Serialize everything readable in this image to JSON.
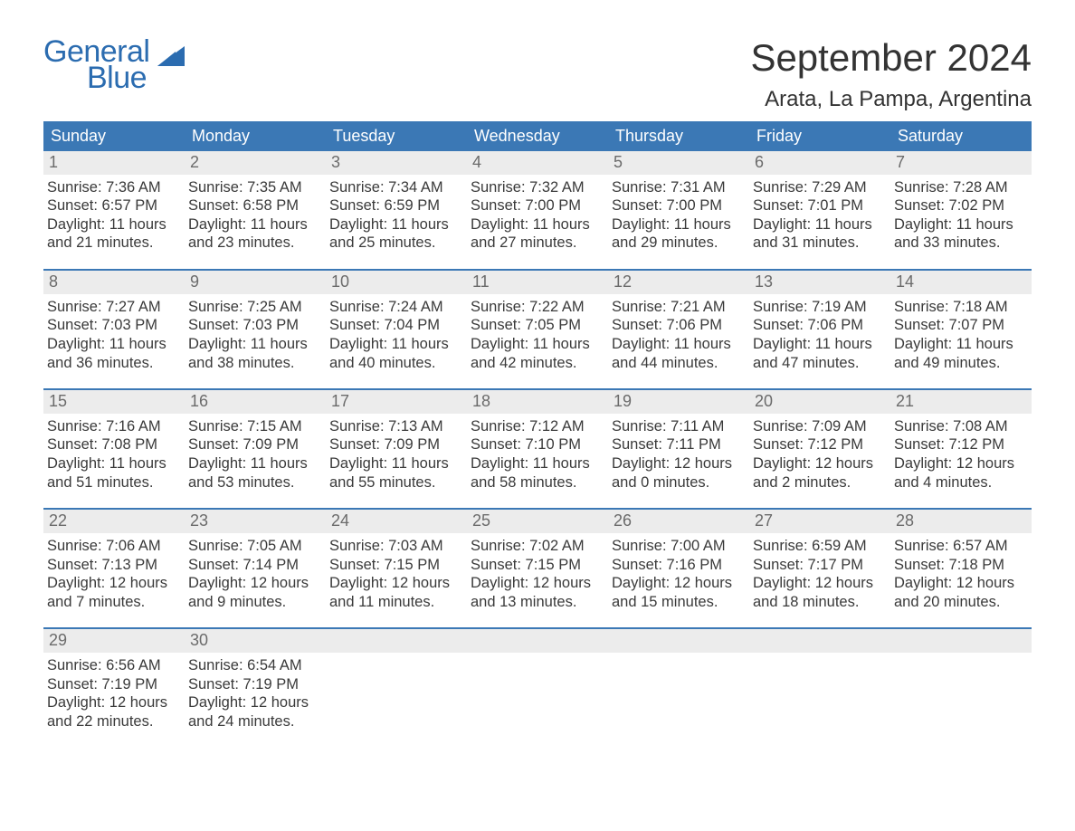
{
  "logo": {
    "text1": "General",
    "text2": "Blue",
    "brand_color": "#2b6cb0",
    "mark_color": "#2b6cb0"
  },
  "title": "September 2024",
  "location": "Arata, La Pampa, Argentina",
  "colors": {
    "header_bg": "#3b78b5",
    "header_fg": "#ffffff",
    "band_bg": "#ececec",
    "band_fg": "#6b6b6b",
    "body_fg": "#3a3a3a",
    "rule": "#3b78b5",
    "page_bg": "#ffffff"
  },
  "typography": {
    "title_fontsize": 42,
    "location_fontsize": 24,
    "dow_fontsize": 18,
    "daynum_fontsize": 18,
    "body_fontsize": 16.5,
    "logo_fontsize": 34,
    "font_family": "Arial"
  },
  "days_of_week": [
    "Sunday",
    "Monday",
    "Tuesday",
    "Wednesday",
    "Thursday",
    "Friday",
    "Saturday"
  ],
  "weeks": [
    [
      {
        "n": "1",
        "sunrise": "Sunrise: 7:36 AM",
        "sunset": "Sunset: 6:57 PM",
        "day1": "Daylight: 11 hours",
        "day2": "and 21 minutes."
      },
      {
        "n": "2",
        "sunrise": "Sunrise: 7:35 AM",
        "sunset": "Sunset: 6:58 PM",
        "day1": "Daylight: 11 hours",
        "day2": "and 23 minutes."
      },
      {
        "n": "3",
        "sunrise": "Sunrise: 7:34 AM",
        "sunset": "Sunset: 6:59 PM",
        "day1": "Daylight: 11 hours",
        "day2": "and 25 minutes."
      },
      {
        "n": "4",
        "sunrise": "Sunrise: 7:32 AM",
        "sunset": "Sunset: 7:00 PM",
        "day1": "Daylight: 11 hours",
        "day2": "and 27 minutes."
      },
      {
        "n": "5",
        "sunrise": "Sunrise: 7:31 AM",
        "sunset": "Sunset: 7:00 PM",
        "day1": "Daylight: 11 hours",
        "day2": "and 29 minutes."
      },
      {
        "n": "6",
        "sunrise": "Sunrise: 7:29 AM",
        "sunset": "Sunset: 7:01 PM",
        "day1": "Daylight: 11 hours",
        "day2": "and 31 minutes."
      },
      {
        "n": "7",
        "sunrise": "Sunrise: 7:28 AM",
        "sunset": "Sunset: 7:02 PM",
        "day1": "Daylight: 11 hours",
        "day2": "and 33 minutes."
      }
    ],
    [
      {
        "n": "8",
        "sunrise": "Sunrise: 7:27 AM",
        "sunset": "Sunset: 7:03 PM",
        "day1": "Daylight: 11 hours",
        "day2": "and 36 minutes."
      },
      {
        "n": "9",
        "sunrise": "Sunrise: 7:25 AM",
        "sunset": "Sunset: 7:03 PM",
        "day1": "Daylight: 11 hours",
        "day2": "and 38 minutes."
      },
      {
        "n": "10",
        "sunrise": "Sunrise: 7:24 AM",
        "sunset": "Sunset: 7:04 PM",
        "day1": "Daylight: 11 hours",
        "day2": "and 40 minutes."
      },
      {
        "n": "11",
        "sunrise": "Sunrise: 7:22 AM",
        "sunset": "Sunset: 7:05 PM",
        "day1": "Daylight: 11 hours",
        "day2": "and 42 minutes."
      },
      {
        "n": "12",
        "sunrise": "Sunrise: 7:21 AM",
        "sunset": "Sunset: 7:06 PM",
        "day1": "Daylight: 11 hours",
        "day2": "and 44 minutes."
      },
      {
        "n": "13",
        "sunrise": "Sunrise: 7:19 AM",
        "sunset": "Sunset: 7:06 PM",
        "day1": "Daylight: 11 hours",
        "day2": "and 47 minutes."
      },
      {
        "n": "14",
        "sunrise": "Sunrise: 7:18 AM",
        "sunset": "Sunset: 7:07 PM",
        "day1": "Daylight: 11 hours",
        "day2": "and 49 minutes."
      }
    ],
    [
      {
        "n": "15",
        "sunrise": "Sunrise: 7:16 AM",
        "sunset": "Sunset: 7:08 PM",
        "day1": "Daylight: 11 hours",
        "day2": "and 51 minutes."
      },
      {
        "n": "16",
        "sunrise": "Sunrise: 7:15 AM",
        "sunset": "Sunset: 7:09 PM",
        "day1": "Daylight: 11 hours",
        "day2": "and 53 minutes."
      },
      {
        "n": "17",
        "sunrise": "Sunrise: 7:13 AM",
        "sunset": "Sunset: 7:09 PM",
        "day1": "Daylight: 11 hours",
        "day2": "and 55 minutes."
      },
      {
        "n": "18",
        "sunrise": "Sunrise: 7:12 AM",
        "sunset": "Sunset: 7:10 PM",
        "day1": "Daylight: 11 hours",
        "day2": "and 58 minutes."
      },
      {
        "n": "19",
        "sunrise": "Sunrise: 7:11 AM",
        "sunset": "Sunset: 7:11 PM",
        "day1": "Daylight: 12 hours",
        "day2": "and 0 minutes."
      },
      {
        "n": "20",
        "sunrise": "Sunrise: 7:09 AM",
        "sunset": "Sunset: 7:12 PM",
        "day1": "Daylight: 12 hours",
        "day2": "and 2 minutes."
      },
      {
        "n": "21",
        "sunrise": "Sunrise: 7:08 AM",
        "sunset": "Sunset: 7:12 PM",
        "day1": "Daylight: 12 hours",
        "day2": "and 4 minutes."
      }
    ],
    [
      {
        "n": "22",
        "sunrise": "Sunrise: 7:06 AM",
        "sunset": "Sunset: 7:13 PM",
        "day1": "Daylight: 12 hours",
        "day2": "and 7 minutes."
      },
      {
        "n": "23",
        "sunrise": "Sunrise: 7:05 AM",
        "sunset": "Sunset: 7:14 PM",
        "day1": "Daylight: 12 hours",
        "day2": "and 9 minutes."
      },
      {
        "n": "24",
        "sunrise": "Sunrise: 7:03 AM",
        "sunset": "Sunset: 7:15 PM",
        "day1": "Daylight: 12 hours",
        "day2": "and 11 minutes."
      },
      {
        "n": "25",
        "sunrise": "Sunrise: 7:02 AM",
        "sunset": "Sunset: 7:15 PM",
        "day1": "Daylight: 12 hours",
        "day2": "and 13 minutes."
      },
      {
        "n": "26",
        "sunrise": "Sunrise: 7:00 AM",
        "sunset": "Sunset: 7:16 PM",
        "day1": "Daylight: 12 hours",
        "day2": "and 15 minutes."
      },
      {
        "n": "27",
        "sunrise": "Sunrise: 6:59 AM",
        "sunset": "Sunset: 7:17 PM",
        "day1": "Daylight: 12 hours",
        "day2": "and 18 minutes."
      },
      {
        "n": "28",
        "sunrise": "Sunrise: 6:57 AM",
        "sunset": "Sunset: 7:18 PM",
        "day1": "Daylight: 12 hours",
        "day2": "and 20 minutes."
      }
    ],
    [
      {
        "n": "29",
        "sunrise": "Sunrise: 6:56 AM",
        "sunset": "Sunset: 7:19 PM",
        "day1": "Daylight: 12 hours",
        "day2": "and 22 minutes."
      },
      {
        "n": "30",
        "sunrise": "Sunrise: 6:54 AM",
        "sunset": "Sunset: 7:19 PM",
        "day1": "Daylight: 12 hours",
        "day2": "and 24 minutes."
      },
      {
        "n": "",
        "sunrise": "",
        "sunset": "",
        "day1": "",
        "day2": ""
      },
      {
        "n": "",
        "sunrise": "",
        "sunset": "",
        "day1": "",
        "day2": ""
      },
      {
        "n": "",
        "sunrise": "",
        "sunset": "",
        "day1": "",
        "day2": ""
      },
      {
        "n": "",
        "sunrise": "",
        "sunset": "",
        "day1": "",
        "day2": ""
      },
      {
        "n": "",
        "sunrise": "",
        "sunset": "",
        "day1": "",
        "day2": ""
      }
    ]
  ]
}
